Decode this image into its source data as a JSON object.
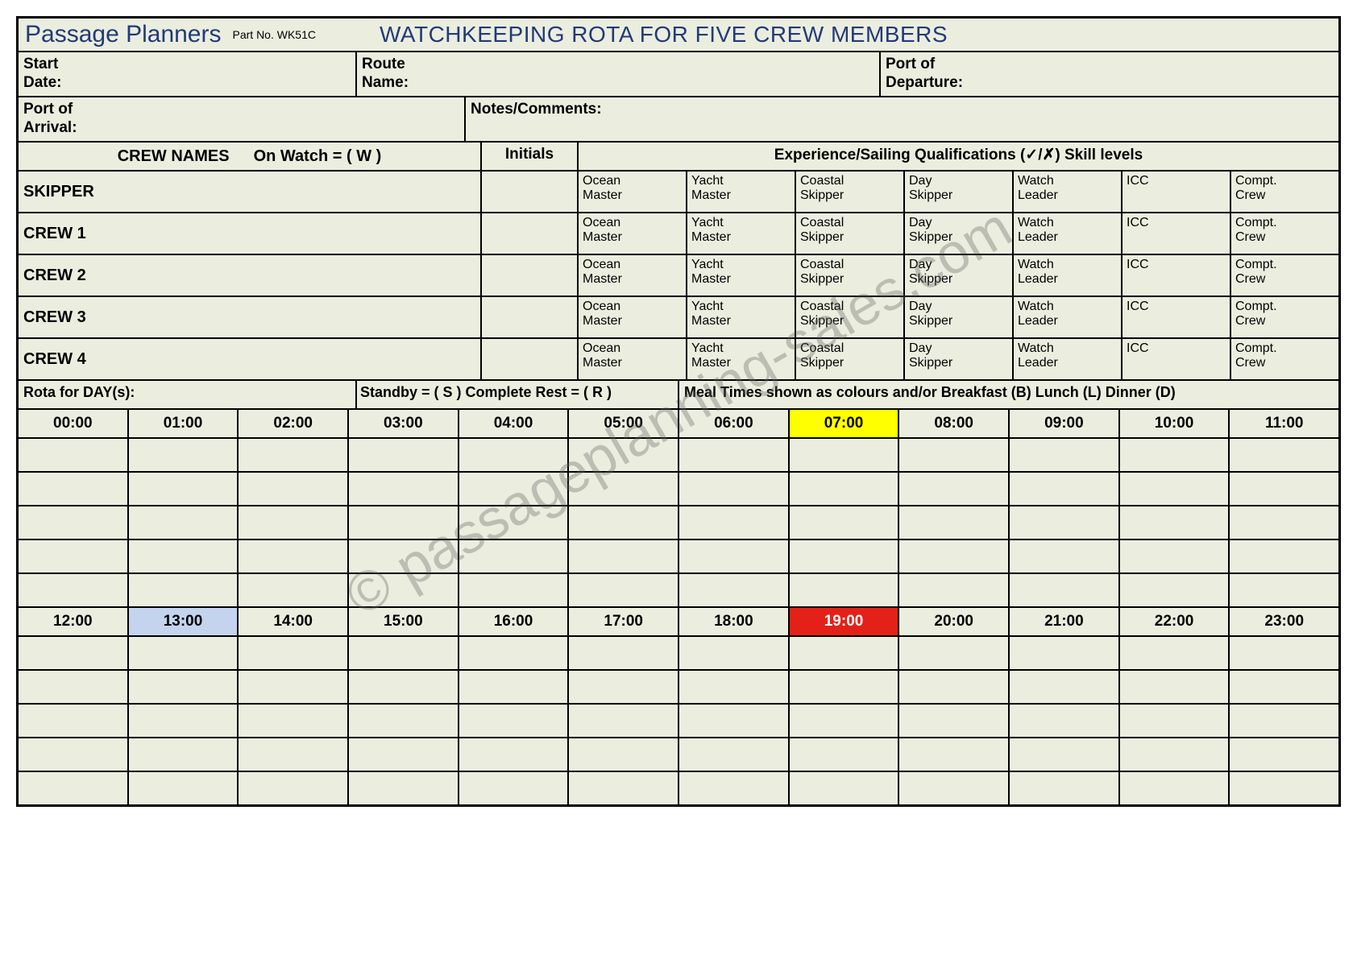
{
  "title": {
    "brand": "Passage Planners",
    "part_no_label": "Part No. WK51C",
    "main": "WATCHKEEPING ROTA FOR FIVE CREW MEMBERS"
  },
  "header_fields": {
    "start_date": "Start\nDate:",
    "route_name": "Route\nName:",
    "port_departure": "Port of\nDeparture:",
    "port_arrival": "Port of\nArrival:",
    "notes": "Notes/Comments:"
  },
  "crew_header": {
    "names": "CREW NAMES",
    "on_watch": "On Watch = ( W )",
    "initials": "Initials",
    "qualifications": "Experience/Sailing Qualifications (✓/✗)  Skill levels"
  },
  "qualifications": [
    "Ocean\nMaster",
    "Yacht\nMaster",
    "Coastal\nSkipper",
    "Day\nSkipper",
    "Watch\nLeader",
    "ICC",
    "Compt.\nCrew"
  ],
  "crew_rows": [
    "SKIPPER",
    "CREW 1",
    "CREW 2",
    "CREW 3",
    "CREW 4"
  ],
  "rota_legend": {
    "day": "Rota for DAY(s):",
    "standby_rest": "Standby = ( S )  Complete Rest = ( R )",
    "meals": "Meal Times shown as colours and/or   Breakfast (B)     Lunch (L)     Dinner (D)"
  },
  "time_grid": {
    "am_times": [
      "00:00",
      "01:00",
      "02:00",
      "03:00",
      "04:00",
      "05:00",
      "06:00",
      "07:00",
      "08:00",
      "09:00",
      "10:00",
      "11:00"
    ],
    "pm_times": [
      "12:00",
      "13:00",
      "14:00",
      "15:00",
      "16:00",
      "17:00",
      "18:00",
      "19:00",
      "20:00",
      "21:00",
      "22:00",
      "23:00"
    ],
    "data_rows_per_block": 5,
    "highlights": {
      "am": {
        "7": "hl-yellow"
      },
      "pm": {
        "1": "hl-blue",
        "7": "hl-red"
      }
    }
  },
  "watermark": "© passageplanning-sales.com",
  "colors": {
    "sheet_bg": "#ebeedf",
    "title_text": "#223a78",
    "highlight_yellow": "#ffff00",
    "highlight_blue": "#c4d4ee",
    "highlight_red": "#e32118",
    "border": "#000000"
  }
}
